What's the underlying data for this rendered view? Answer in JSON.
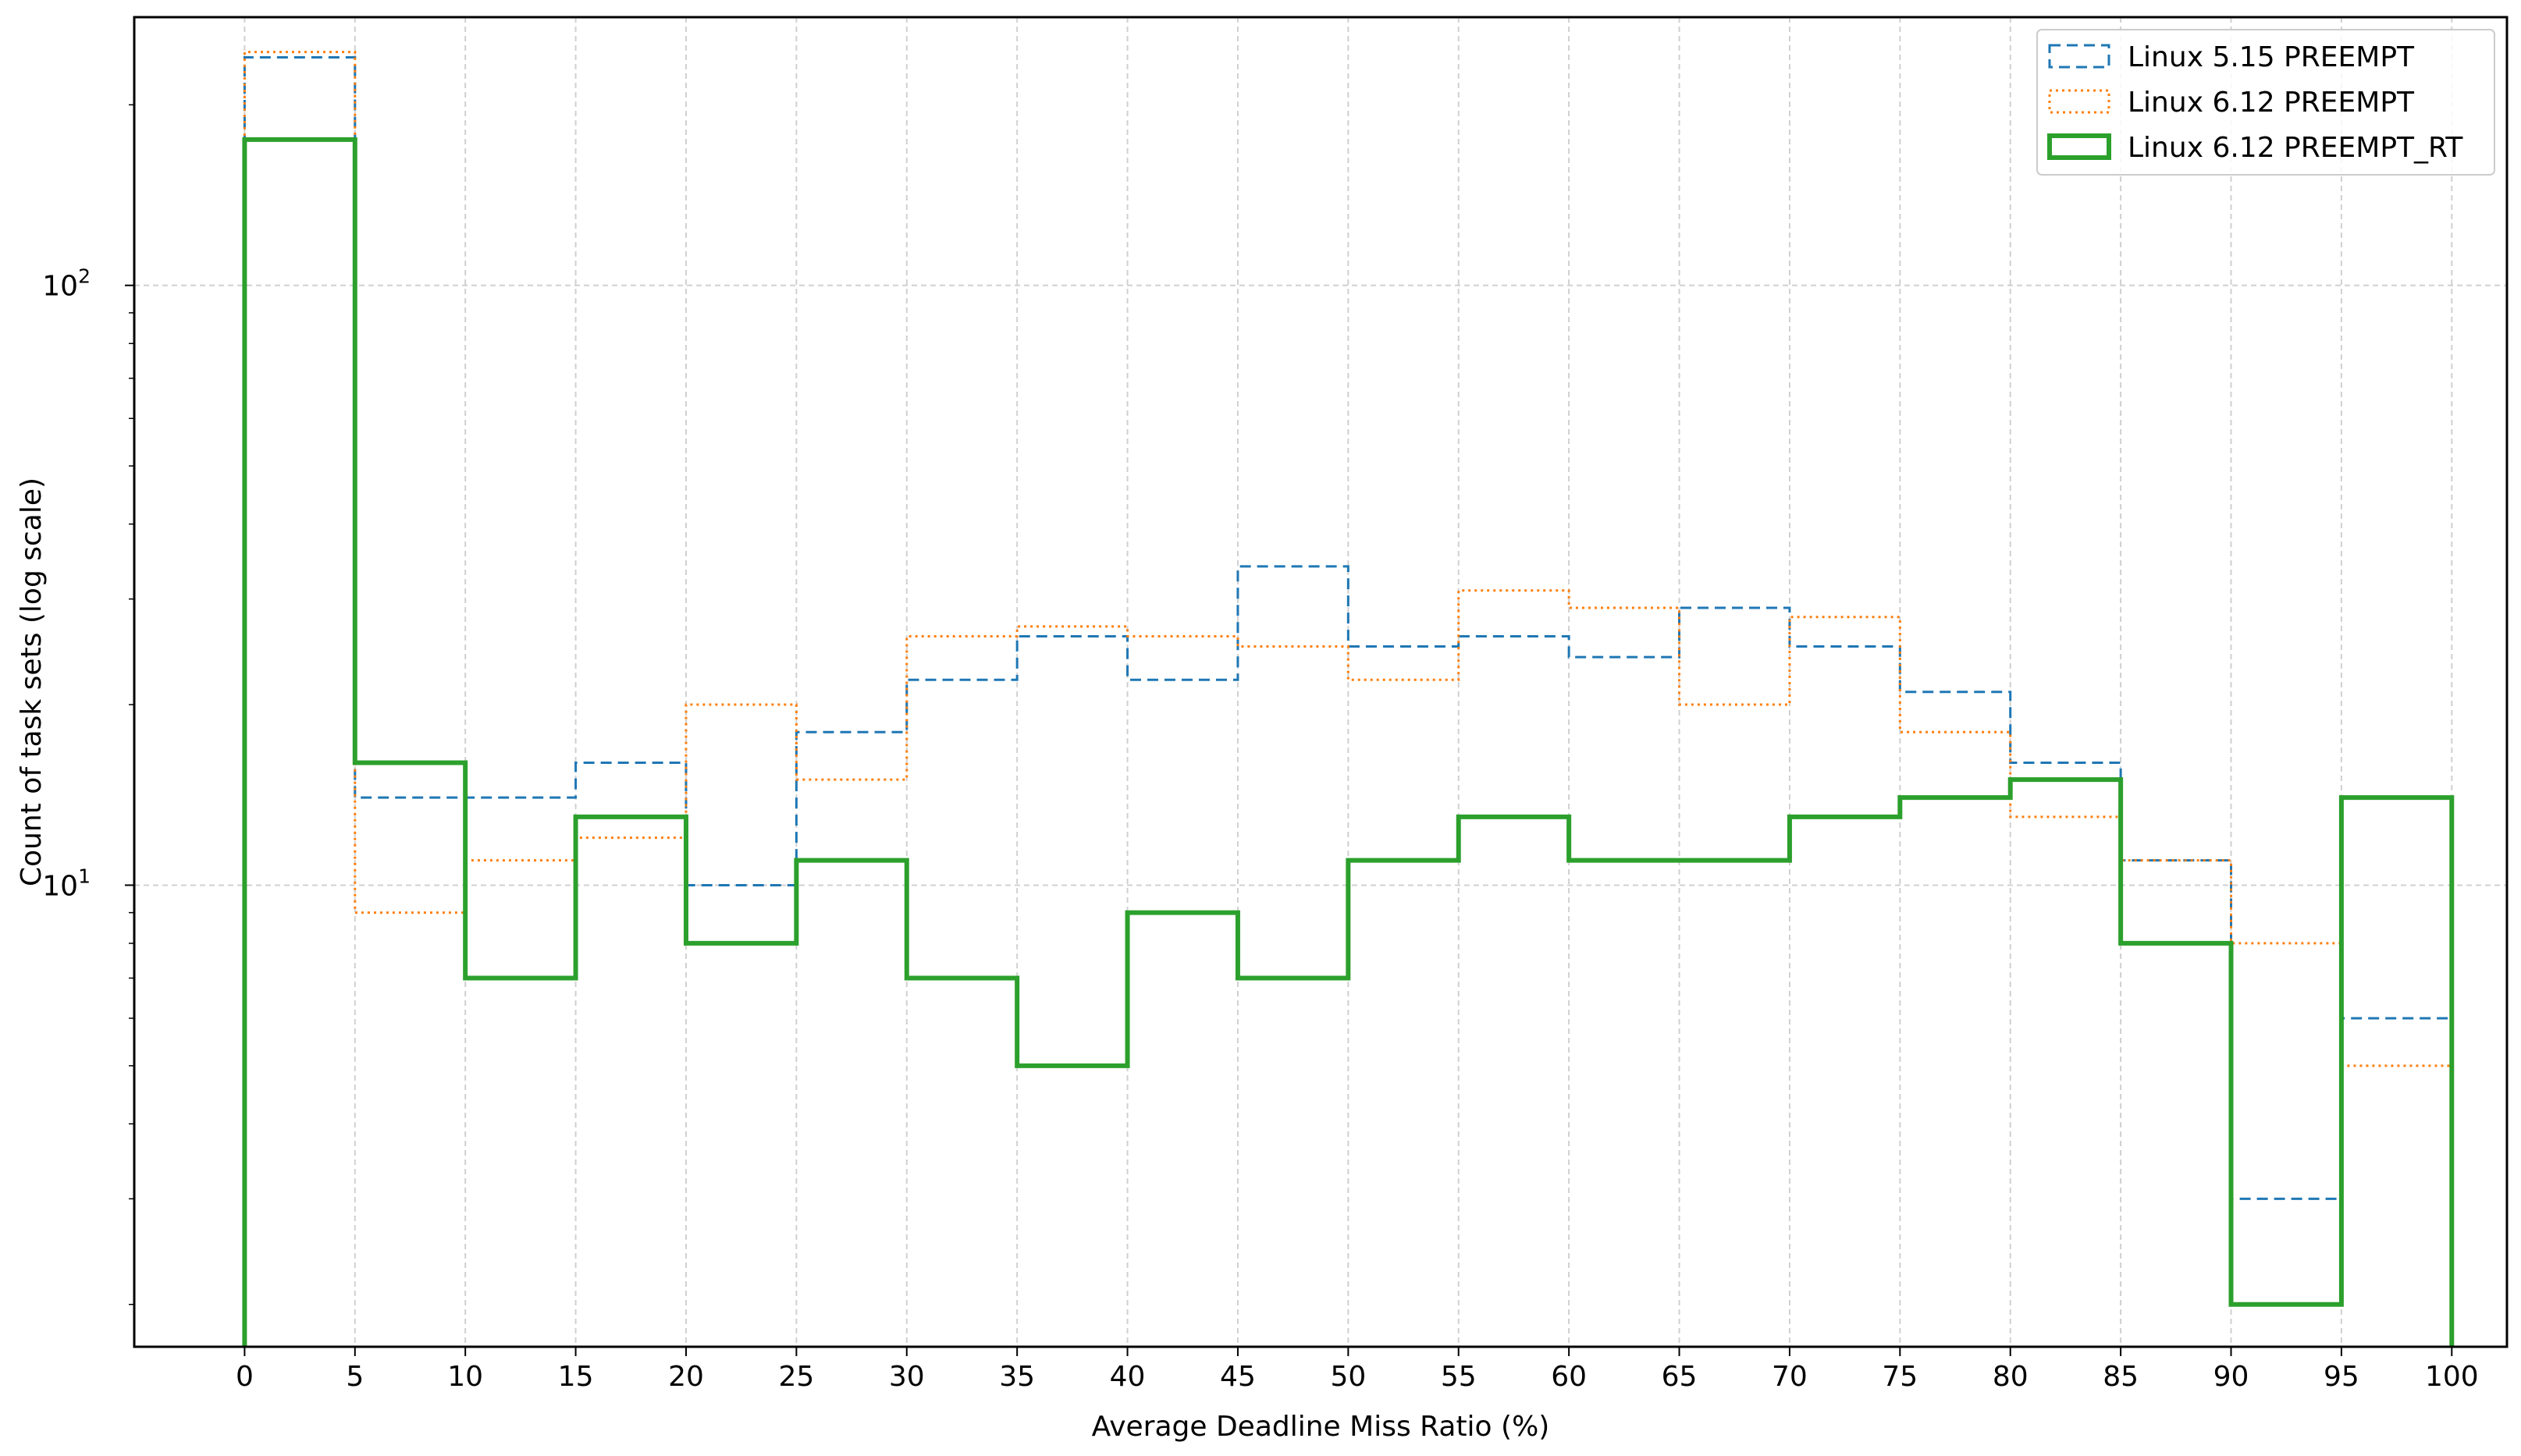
{
  "chart_data": {
    "type": "step-histogram",
    "xlabel": "Average Deadline Miss Ratio (%)",
    "ylabel": "Count of task sets (log scale)",
    "yscale": "log",
    "ylim": [
      1.7,
      280
    ],
    "xlim": [
      -5,
      102.5
    ],
    "grid": true,
    "legend_position": "top-right",
    "bin_edges": [
      0,
      5,
      10,
      15,
      20,
      25,
      30,
      35,
      40,
      45,
      50,
      55,
      60,
      65,
      70,
      75,
      80,
      85,
      90,
      95,
      100
    ],
    "x_ticks": [
      "0",
      "5",
      "10",
      "15",
      "20",
      "25",
      "30",
      "35",
      "40",
      "45",
      "50",
      "55",
      "60",
      "65",
      "70",
      "75",
      "80",
      "85",
      "90",
      "95",
      "100"
    ],
    "y_ticks": [
      {
        "value": 10,
        "base": "10",
        "exp": "1"
      },
      {
        "value": 100,
        "base": "10",
        "exp": "2"
      }
    ],
    "series": [
      {
        "name": "Linux 5.15 PREEMPT",
        "color": "#1f77b4",
        "style": "dashed",
        "values": [
          240,
          14,
          14,
          16,
          10,
          18,
          22,
          26,
          22,
          34,
          25,
          26,
          24,
          29,
          25,
          21,
          16,
          11,
          3,
          6
        ]
      },
      {
        "name": "Linux 6.12 PREEMPT",
        "color": "#ff7f0e",
        "style": "dotted",
        "values": [
          245,
          9,
          11,
          12,
          20,
          15,
          26,
          27,
          26,
          25,
          22,
          31,
          29,
          20,
          28,
          18,
          13,
          11,
          8,
          5
        ]
      },
      {
        "name": "Linux 6.12 PREEMPT_RT",
        "color": "#2ca02c",
        "style": "solid",
        "values": [
          175,
          16,
          7,
          13,
          8,
          11,
          7,
          5,
          9,
          7,
          11,
          13,
          11,
          11,
          13,
          14,
          15,
          8,
          2,
          14
        ]
      }
    ]
  }
}
